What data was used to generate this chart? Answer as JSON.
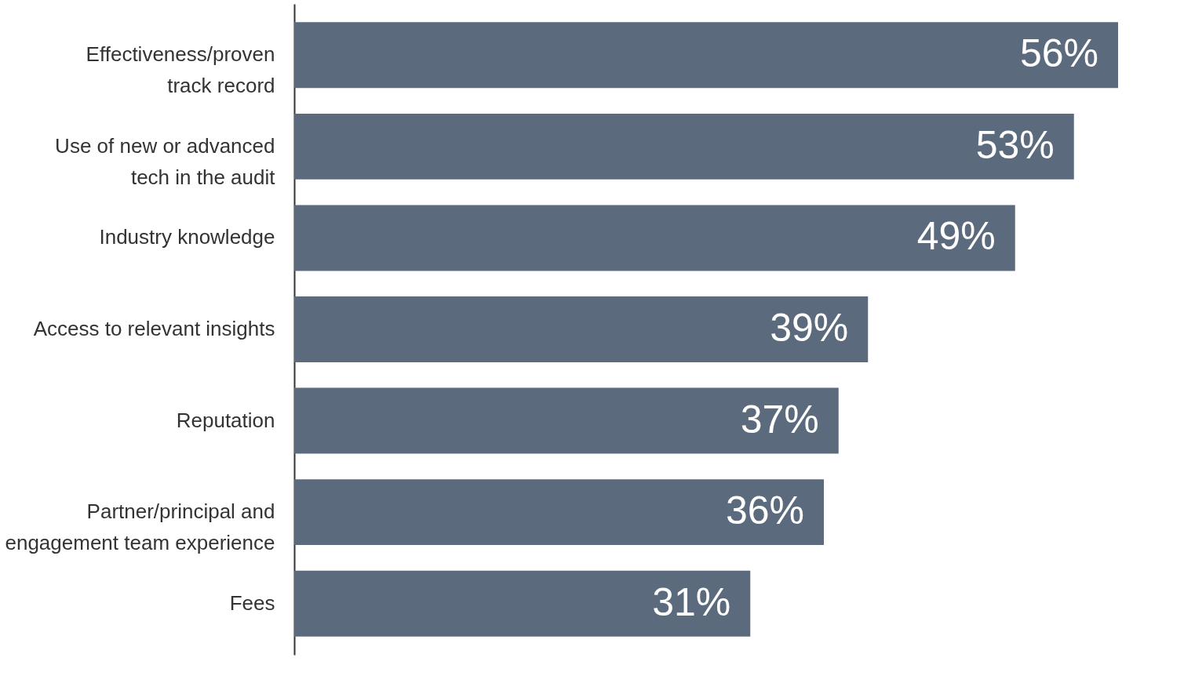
{
  "chart_data": {
    "type": "bar",
    "orientation": "horizontal",
    "categories": [
      "Effectiveness/proven\ntrack record",
      "Use of new or advanced\ntech in the audit",
      "Industry knowledge",
      "Access to relevant insights",
      "Reputation",
      "Partner/principal and\nengagement team experience",
      "Fees"
    ],
    "values": [
      56,
      53,
      49,
      39,
      37,
      36,
      31
    ],
    "value_labels": [
      "56%",
      "53%",
      "49%",
      "39%",
      "37%",
      "36%",
      "31%"
    ],
    "color": "#5b6b7d",
    "xlim": [
      0,
      56
    ],
    "tick_labels": "y"
  }
}
